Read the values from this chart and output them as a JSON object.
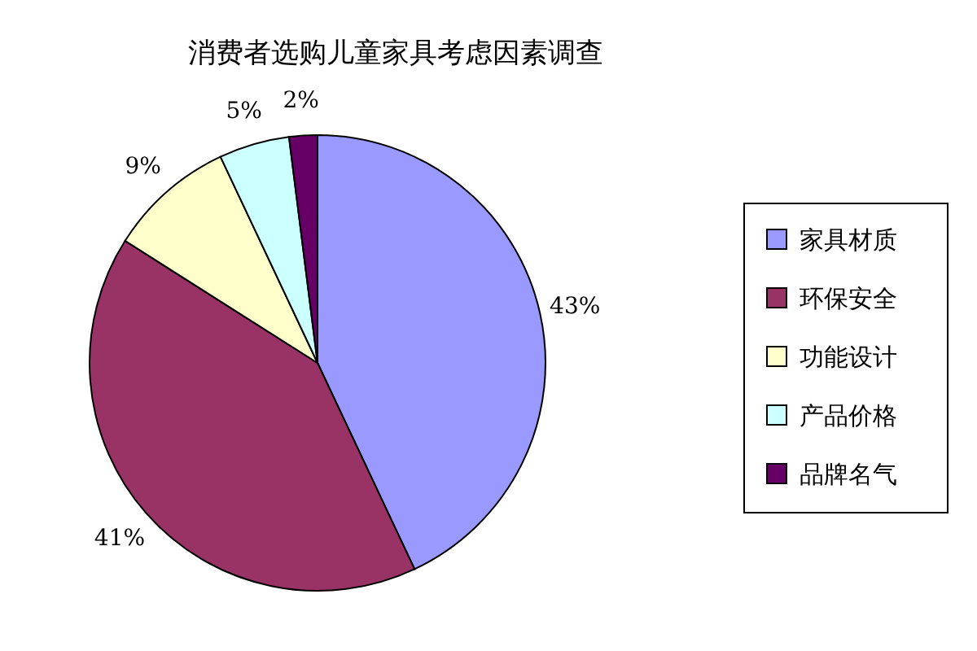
{
  "chart_data": {
    "type": "pie",
    "title": "消费者选购儿童家具考虑因素调查",
    "categories": [
      "家具材质",
      "环保安全",
      "功能设计",
      "产品价格",
      "品牌名气"
    ],
    "values": [
      43,
      41,
      9,
      5,
      2
    ],
    "colors": [
      "#9999ff",
      "#993366",
      "#ffffcc",
      "#ccffff",
      "#660066"
    ],
    "value_labels": [
      "43%",
      "41%",
      "9%",
      "5%",
      "2%"
    ],
    "legend": "right"
  }
}
